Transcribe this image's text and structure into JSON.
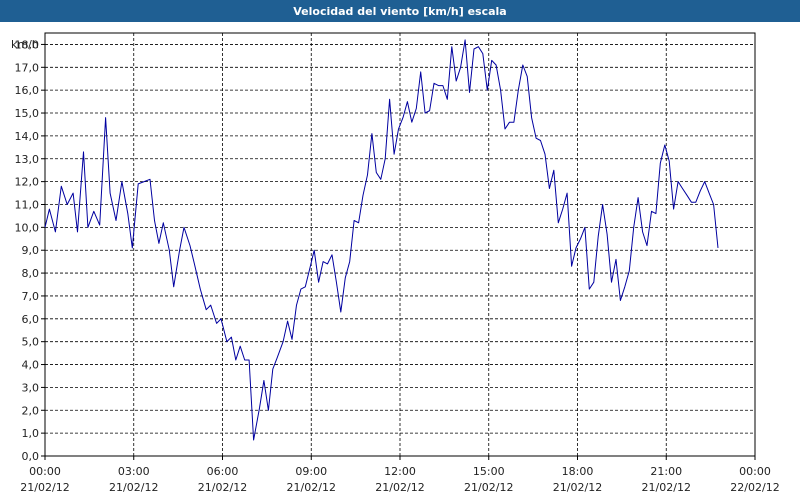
{
  "window": {
    "title": "Velocidad del viento [km/h] escala"
  },
  "colors": {
    "titlebar": "#1f5f93",
    "line": "#0000a0",
    "grid": "#000000"
  },
  "chart_data": {
    "type": "line",
    "title": "Velocidad del viento [km/h] escala",
    "ylabel": "km/h",
    "ylim": [
      0,
      18.5
    ],
    "y_ticks": [
      "0,0",
      "1,0",
      "2,0",
      "3,0",
      "4,0",
      "5,0",
      "6,0",
      "7,0",
      "8,0",
      "9,0",
      "10,0",
      "11,0",
      "12,0",
      "13,0",
      "14,0",
      "15,0",
      "16,0",
      "17,0",
      "18,0"
    ],
    "x_ticks": [
      {
        "time": "00:00",
        "date": "21/02/12"
      },
      {
        "time": "03:00",
        "date": "21/02/12"
      },
      {
        "time": "06:00",
        "date": "21/02/12"
      },
      {
        "time": "09:00",
        "date": "21/02/12"
      },
      {
        "time": "12:00",
        "date": "21/02/12"
      },
      {
        "time": "15:00",
        "date": "21/02/12"
      },
      {
        "time": "18:00",
        "date": "21/02/12"
      },
      {
        "time": "21:00",
        "date": "21/02/12"
      },
      {
        "time": "00:00",
        "date": "22/02/12"
      }
    ],
    "xlim_hours": [
      0,
      24
    ],
    "grid": true,
    "series": [
      {
        "values": [
          [
            0.0,
            10.0
          ],
          [
            0.15,
            10.8
          ],
          [
            0.35,
            9.8
          ],
          [
            0.55,
            11.8
          ],
          [
            0.75,
            11.0
          ],
          [
            0.95,
            11.5
          ],
          [
            1.1,
            9.8
          ],
          [
            1.3,
            13.3
          ],
          [
            1.45,
            10.0
          ],
          [
            1.65,
            10.7
          ],
          [
            1.85,
            10.1
          ],
          [
            2.05,
            14.8
          ],
          [
            2.2,
            11.5
          ],
          [
            2.4,
            10.3
          ],
          [
            2.6,
            12.0
          ],
          [
            2.8,
            10.6
          ],
          [
            2.95,
            9.1
          ],
          [
            3.15,
            11.9
          ],
          [
            3.35,
            12.0
          ],
          [
            3.55,
            12.1
          ],
          [
            3.7,
            10.3
          ],
          [
            3.85,
            9.3
          ],
          [
            4.0,
            10.2
          ],
          [
            4.2,
            9.0
          ],
          [
            4.35,
            7.4
          ],
          [
            4.55,
            9.0
          ],
          [
            4.7,
            10.0
          ],
          [
            4.9,
            9.2
          ],
          [
            5.05,
            8.4
          ],
          [
            5.25,
            7.3
          ],
          [
            5.45,
            6.4
          ],
          [
            5.6,
            6.6
          ],
          [
            5.8,
            5.8
          ],
          [
            5.95,
            6.0
          ],
          [
            6.15,
            5.0
          ],
          [
            6.3,
            5.2
          ],
          [
            6.45,
            4.2
          ],
          [
            6.6,
            4.8
          ],
          [
            6.75,
            4.2
          ],
          [
            6.9,
            4.2
          ],
          [
            7.05,
            0.7
          ],
          [
            7.25,
            2.1
          ],
          [
            7.4,
            3.3
          ],
          [
            7.55,
            2.0
          ],
          [
            7.7,
            3.8
          ],
          [
            7.85,
            4.3
          ],
          [
            8.05,
            5.0
          ],
          [
            8.2,
            5.9
          ],
          [
            8.35,
            5.1
          ],
          [
            8.5,
            6.6
          ],
          [
            8.65,
            7.3
          ],
          [
            8.8,
            7.4
          ],
          [
            8.95,
            8.2
          ],
          [
            9.1,
            9.0
          ],
          [
            9.25,
            7.6
          ],
          [
            9.4,
            8.5
          ],
          [
            9.55,
            8.4
          ],
          [
            9.7,
            8.8
          ],
          [
            9.85,
            7.6
          ],
          [
            10.0,
            6.3
          ],
          [
            10.15,
            7.8
          ],
          [
            10.3,
            8.5
          ],
          [
            10.45,
            10.3
          ],
          [
            10.6,
            10.2
          ],
          [
            10.75,
            11.4
          ],
          [
            10.9,
            12.3
          ],
          [
            11.05,
            14.1
          ],
          [
            11.2,
            12.4
          ],
          [
            11.35,
            12.1
          ],
          [
            11.5,
            13.0
          ],
          [
            11.65,
            15.6
          ],
          [
            11.8,
            13.2
          ],
          [
            11.95,
            14.3
          ],
          [
            12.1,
            14.8
          ],
          [
            12.25,
            15.5
          ],
          [
            12.4,
            14.6
          ],
          [
            12.55,
            15.2
          ],
          [
            12.7,
            16.8
          ],
          [
            12.85,
            15.0
          ],
          [
            13.0,
            15.1
          ],
          [
            13.15,
            16.3
          ],
          [
            13.3,
            16.2
          ],
          [
            13.45,
            16.2
          ],
          [
            13.6,
            15.6
          ],
          [
            13.75,
            17.9
          ],
          [
            13.9,
            16.4
          ],
          [
            14.05,
            17.0
          ],
          [
            14.2,
            18.2
          ],
          [
            14.35,
            15.9
          ],
          [
            14.5,
            17.8
          ],
          [
            14.65,
            17.9
          ],
          [
            14.8,
            17.6
          ],
          [
            14.95,
            16.0
          ],
          [
            15.1,
            17.3
          ],
          [
            15.25,
            17.1
          ],
          [
            15.4,
            16.0
          ],
          [
            15.55,
            14.3
          ],
          [
            15.7,
            14.6
          ],
          [
            15.85,
            14.6
          ],
          [
            16.0,
            16.0
          ],
          [
            16.15,
            17.1
          ],
          [
            16.3,
            16.6
          ],
          [
            16.45,
            14.8
          ],
          [
            16.6,
            13.9
          ],
          [
            16.75,
            13.8
          ],
          [
            16.9,
            13.2
          ],
          [
            17.05,
            11.7
          ],
          [
            17.2,
            12.5
          ],
          [
            17.35,
            10.2
          ],
          [
            17.5,
            10.8
          ],
          [
            17.65,
            11.5
          ],
          [
            17.8,
            8.3
          ],
          [
            17.95,
            9.1
          ],
          [
            18.1,
            9.5
          ],
          [
            18.25,
            10.0
          ],
          [
            18.4,
            7.3
          ],
          [
            18.55,
            7.6
          ],
          [
            18.7,
            9.6
          ],
          [
            18.85,
            11.0
          ],
          [
            19.0,
            9.7
          ],
          [
            19.15,
            7.6
          ],
          [
            19.3,
            8.6
          ],
          [
            19.45,
            6.8
          ],
          [
            19.6,
            7.4
          ],
          [
            19.75,
            8.1
          ],
          [
            19.9,
            10.0
          ],
          [
            20.05,
            11.3
          ],
          [
            20.2,
            9.8
          ],
          [
            20.35,
            9.2
          ],
          [
            20.5,
            10.7
          ],
          [
            20.65,
            10.6
          ],
          [
            20.8,
            12.8
          ],
          [
            20.95,
            13.6
          ],
          [
            21.1,
            12.9
          ],
          [
            21.25,
            10.8
          ],
          [
            21.4,
            12.0
          ],
          [
            21.55,
            11.7
          ],
          [
            21.7,
            11.4
          ],
          [
            21.85,
            11.1
          ],
          [
            22.0,
            11.1
          ],
          [
            22.15,
            11.6
          ],
          [
            22.3,
            12.0
          ],
          [
            22.45,
            11.5
          ],
          [
            22.6,
            11.0
          ],
          [
            22.75,
            9.1
          ]
        ]
      }
    ]
  }
}
